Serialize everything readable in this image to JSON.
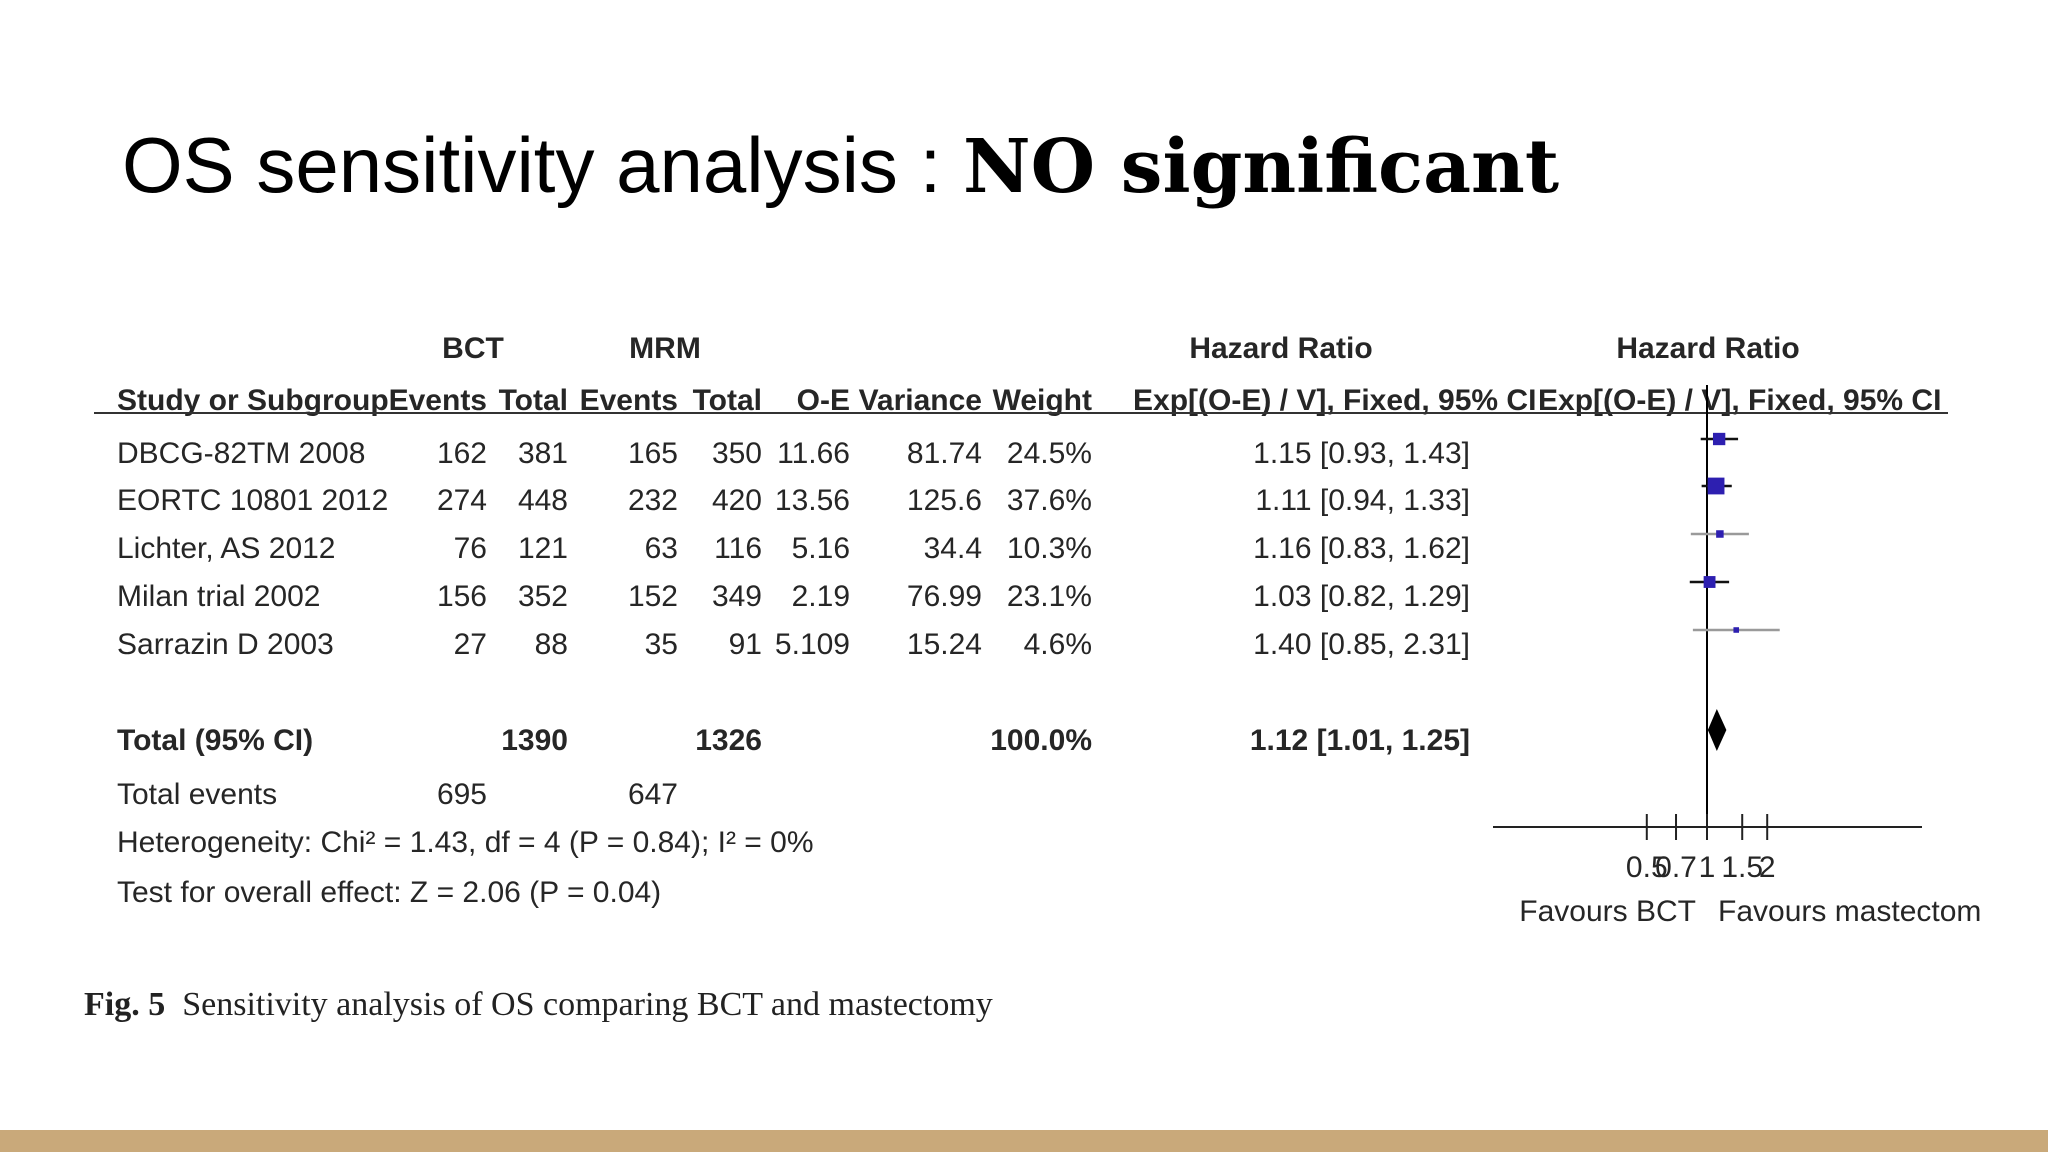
{
  "slide": {
    "title_prefix": "OS sensitivity analysis : ",
    "title_emphasis": "NO significant",
    "bar_color": "#c9a97a"
  },
  "caption": {
    "label": "Fig. 5",
    "text": "Sensitivity analysis of OS comparing BCT and mastectomy"
  },
  "chart_data": {
    "type": "table",
    "group_headers": {
      "bct": "BCT",
      "mrm": "MRM",
      "hr_col": "Hazard Ratio",
      "hr_plot": "Hazard Ratio"
    },
    "columns": [
      "Study or Subgroup",
      "Events",
      "Total",
      "Events",
      "Total",
      "O-E",
      "Variance",
      "Weight",
      "Exp[(O-E) / V], Fixed, 95% CI",
      "Exp[(O-E) / V], Fixed, 95% CI"
    ],
    "studies": [
      {
        "name": "DBCG-82TM 2008",
        "bct_events": "162",
        "bct_total": "381",
        "mrm_events": "165",
        "mrm_total": "350",
        "oe": "11.66",
        "variance": "81.74",
        "weight": "24.5%",
        "hr_text": "1.15 [0.93, 1.43]",
        "hr": 1.15,
        "lo": 0.93,
        "hi": 1.43,
        "w": 24.5
      },
      {
        "name": "EORTC 10801 2012",
        "bct_events": "274",
        "bct_total": "448",
        "mrm_events": "232",
        "mrm_total": "420",
        "oe": "13.56",
        "variance": "125.6",
        "weight": "37.6%",
        "hr_text": "1.11 [0.94, 1.33]",
        "hr": 1.11,
        "lo": 0.94,
        "hi": 1.33,
        "w": 37.6
      },
      {
        "name": "Lichter, AS 2012",
        "bct_events": "76",
        "bct_total": "121",
        "mrm_events": "63",
        "mrm_total": "116",
        "oe": "5.16",
        "variance": "34.4",
        "weight": "10.3%",
        "hr_text": "1.16 [0.83, 1.62]",
        "hr": 1.16,
        "lo": 0.83,
        "hi": 1.62,
        "w": 10.3
      },
      {
        "name": "Milan trial 2002",
        "bct_events": "156",
        "bct_total": "352",
        "mrm_events": "152",
        "mrm_total": "349",
        "oe": "2.19",
        "variance": "76.99",
        "weight": "23.1%",
        "hr_text": "1.03 [0.82, 1.29]",
        "hr": 1.03,
        "lo": 0.82,
        "hi": 1.29,
        "w": 23.1
      },
      {
        "name": "Sarrazin D 2003",
        "bct_events": "27",
        "bct_total": "88",
        "mrm_events": "35",
        "mrm_total": "91",
        "oe": "5.109",
        "variance": "15.24",
        "weight": "4.6%",
        "hr_text": "1.40 [0.85, 2.31]",
        "hr": 1.4,
        "lo": 0.85,
        "hi": 2.31,
        "w": 4.6
      }
    ],
    "total": {
      "label": "Total (95% CI)",
      "bct_total": "1390",
      "mrm_total": "1326",
      "weight": "100.0%",
      "hr_text": "1.12 [1.01, 1.25]",
      "hr": 1.12,
      "lo": 1.01,
      "hi": 1.25
    },
    "total_events": {
      "label": "Total events",
      "bct": "695",
      "mrm": "647"
    },
    "heterogeneity": "Heterogeneity: Chi² = 1.43, df = 4 (P = 0.84); I² = 0%",
    "overall_effect": "Test for overall effect: Z = 2.06 (P = 0.04)",
    "axis": {
      "scale": "log",
      "ticks": [
        0.5,
        0.7,
        1,
        1.5,
        2
      ],
      "tick_labels": [
        "0.5",
        "0.7",
        "1",
        "1.5",
        "2"
      ],
      "xlim": [
        0.4,
        2.5
      ]
    },
    "favours_left": "Favours BCT",
    "favours_right": "Favours mastectom",
    "colors": {
      "marker": "#2d1fb0",
      "ci_line_light": "#9a9a9a",
      "ci_line_dark": "#111111",
      "diamond": "#000000"
    }
  }
}
